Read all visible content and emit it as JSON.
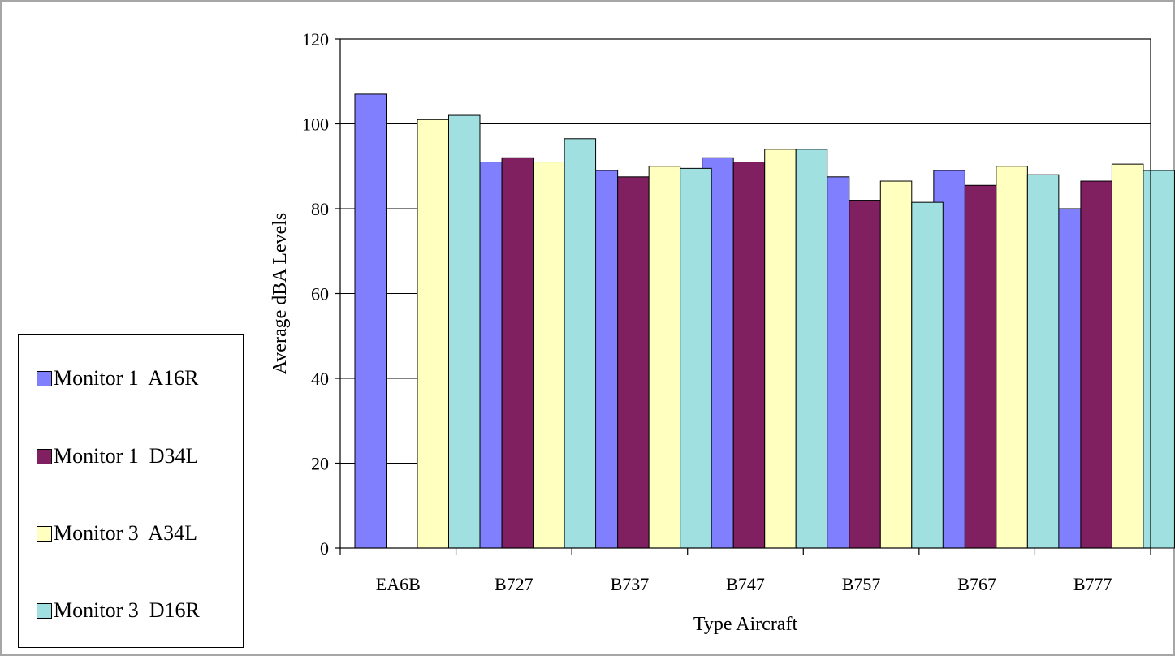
{
  "chart_data": {
    "type": "bar",
    "categories": [
      "EA6B",
      "B727",
      "B737",
      "B747",
      "B757",
      "B767",
      "B777"
    ],
    "series": [
      {
        "name": "Monitor 1  A16R",
        "color": "#8080ff",
        "values": [
          107,
          91,
          89,
          92,
          87.5,
          89,
          80
        ]
      },
      {
        "name": "Monitor 1  D34L",
        "color": "#802060",
        "values": [
          null,
          92,
          87.5,
          91,
          82,
          85.5,
          86.5
        ]
      },
      {
        "name": "Monitor 3  A34L",
        "color": "#ffffc0",
        "values": [
          101,
          91,
          90,
          94,
          86.5,
          90,
          90.5
        ]
      },
      {
        "name": "Monitor 3  D16R",
        "color": "#a0e0e0",
        "values": [
          102,
          96.5,
          89.5,
          94,
          81.5,
          88,
          89
        ]
      }
    ],
    "xlabel": "Type Aircraft",
    "ylabel": "Average dBA Levels",
    "ylim": [
      0,
      120
    ],
    "yticks": [
      0,
      20,
      40,
      60,
      80,
      100,
      120
    ],
    "grid": true,
    "legend_position": "left"
  }
}
